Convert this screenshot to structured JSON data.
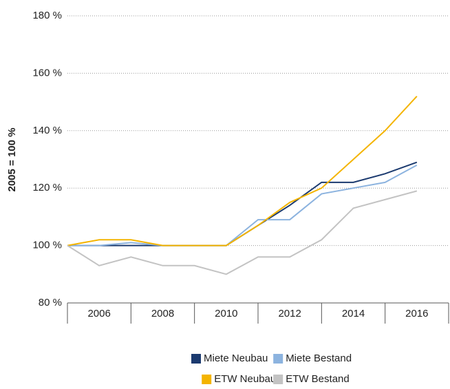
{
  "chart_data": {
    "type": "line",
    "y_label": "2005 = 100 %",
    "x": [
      2005,
      2006,
      2007,
      2008,
      2009,
      2010,
      2011,
      2012,
      2013,
      2014,
      2015,
      2016
    ],
    "xlim": [
      2005,
      2017
    ],
    "xticks": [
      2006,
      2008,
      2010,
      2012,
      2014,
      2016
    ],
    "ylim": [
      80,
      180
    ],
    "yticks": [
      {
        "value": 80,
        "label": "80 %"
      },
      {
        "value": 100,
        "label": "100 %"
      },
      {
        "value": 120,
        "label": "120 %"
      },
      {
        "value": 140,
        "label": "140 %"
      },
      {
        "value": 160,
        "label": "160 %"
      },
      {
        "value": 180,
        "label": "180 %"
      }
    ],
    "grid": true,
    "legend": "bottom",
    "series": [
      {
        "name": "Miete Neubau",
        "color": "#1b3a6f",
        "values": [
          100,
          100,
          100,
          100,
          100,
          100,
          107,
          114,
          122,
          122,
          125,
          129
        ]
      },
      {
        "name": "Miete Bestand",
        "color": "#8cb3df",
        "values": [
          100,
          100,
          101,
          100,
          100,
          100,
          109,
          109,
          118,
          120,
          122,
          128
        ]
      },
      {
        "name": "ETW Neubau",
        "color": "#f4b400",
        "values": [
          100,
          102,
          102,
          100,
          100,
          100,
          107,
          115,
          120,
          130,
          140,
          152
        ]
      },
      {
        "name": "ETW Bestand",
        "color": "#c3c3c3",
        "values": [
          100,
          93,
          96,
          93,
          93,
          90,
          96,
          96,
          102,
          113,
          116,
          119
        ]
      }
    ]
  }
}
